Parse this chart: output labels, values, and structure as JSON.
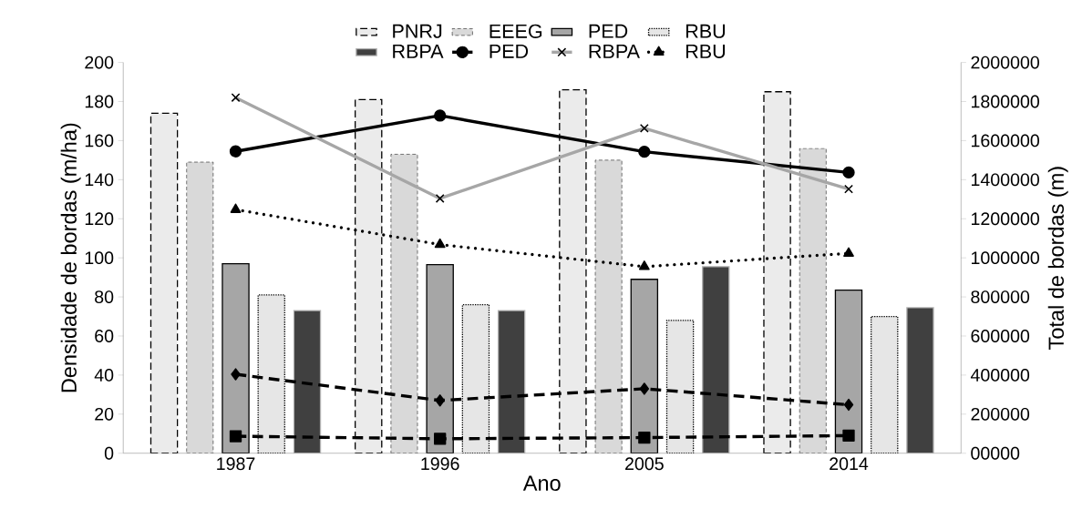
{
  "chart_data": {
    "type": "bar",
    "xlabel": "Ano",
    "ylabel": "Densidade de bordas (m/ha)",
    "y2label": "Total de bordas (m)",
    "categories": [
      "1987",
      "1996",
      "2005",
      "2014"
    ],
    "series": [
      {
        "name": "PNRJ",
        "color": "#ebebeb",
        "values": [
          174,
          181,
          186,
          185
        ]
      },
      {
        "name": "EEEG",
        "color": "#d9d9d9",
        "values": [
          149,
          153,
          150,
          156
        ]
      },
      {
        "name": "PED",
        "color": "#a6a6a6",
        "values": [
          97,
          96.5,
          89,
          83.5
        ]
      },
      {
        "name": "RBU",
        "color": "#e6e6e6",
        "values": [
          81,
          76,
          68,
          70
        ]
      },
      {
        "name": "RBPA",
        "color": "#404040",
        "values": [
          73,
          73,
          95.5,
          74.5
        ]
      },
      {
        "name": "PED",
        "type": "line",
        "axis": "y2",
        "color": "#000000",
        "marker": "circle",
        "line_style": "solid",
        "values": [
          1545000,
          1728000,
          1543000,
          1437000
        ]
      },
      {
        "name": "RBPA",
        "type": "line",
        "axis": "y2",
        "color": "#a6a6a6",
        "marker": "cross",
        "line_style": "solid",
        "values": [
          1820000,
          1304000,
          1663000,
          1352000
        ]
      },
      {
        "name": "RBU",
        "type": "line",
        "axis": "y2",
        "color": "#000000",
        "marker": "triangle",
        "line_style": "dotted",
        "values": [
          1247000,
          1068000,
          955000,
          1023000
        ]
      },
      {
        "type": "line",
        "axis": "y2",
        "color": "#000000",
        "marker": "diamond",
        "line_style": "dashed",
        "values": [
          404000,
          270000,
          330000,
          248000
        ]
      },
      {
        "type": "line",
        "axis": "y2",
        "color": "#000000",
        "marker": "square",
        "line_style": "dashed",
        "values": [
          87000,
          74000,
          80000,
          90000
        ]
      }
    ],
    "ylim": [
      0,
      200
    ],
    "yticks": [
      0,
      20,
      40,
      60,
      80,
      100,
      120,
      140,
      160,
      180,
      200
    ],
    "y2lim": [
      0,
      2000000
    ],
    "y2ticks": [
      {
        "value": 0,
        "label": "00000"
      },
      200000,
      400000,
      600000,
      800000,
      1000000,
      1200000,
      1400000,
      1600000,
      1800000,
      2000000
    ],
    "legend": "top",
    "grid": false
  }
}
